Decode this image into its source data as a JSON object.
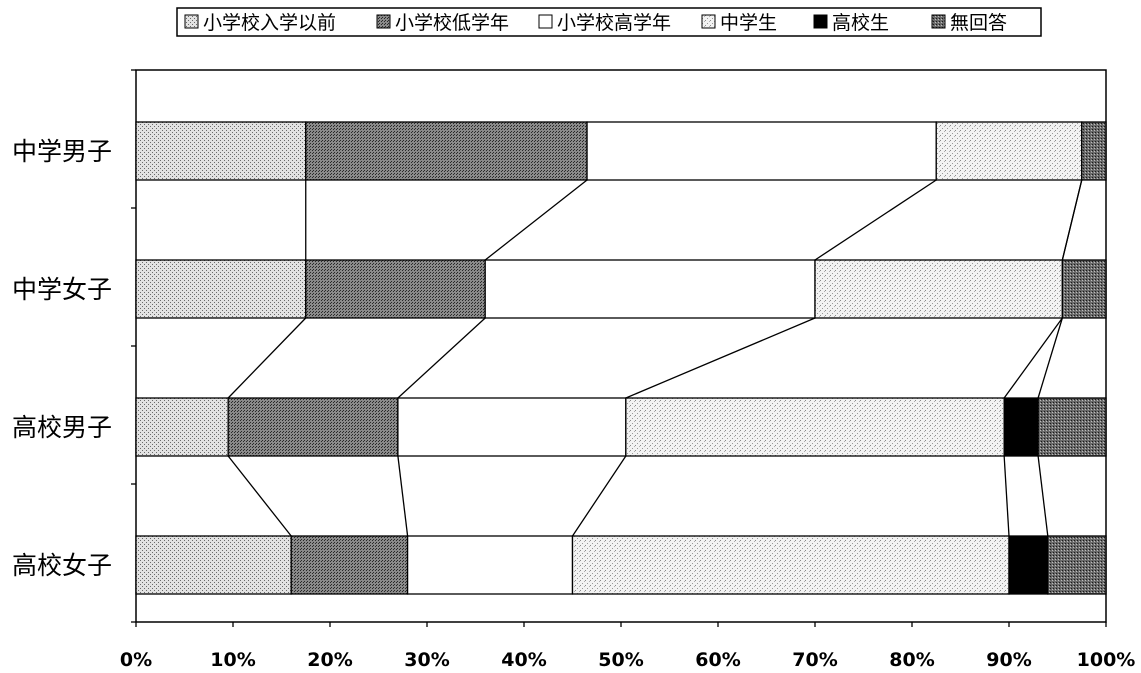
{
  "chart_data": {
    "type": "bar",
    "stacked": "percent",
    "orientation": "horizontal",
    "connector_lines": true,
    "legend_position": "top",
    "grid": false,
    "categories": [
      "中学男子",
      "中学女子",
      "高校男子",
      "高校女子"
    ],
    "series": [
      {
        "name": "小学校入学以前",
        "values": [
          17.5,
          17.5,
          9.5,
          16
        ]
      },
      {
        "name": "小学校低学年",
        "values": [
          29,
          18.5,
          17.5,
          12
        ]
      },
      {
        "name": "小学校高学年",
        "values": [
          36,
          34,
          23.5,
          17
        ]
      },
      {
        "name": "中学生",
        "values": [
          15,
          25.5,
          39,
          45
        ]
      },
      {
        "name": "高校生",
        "values": [
          0,
          0,
          3.5,
          4
        ]
      },
      {
        "name": "無回答",
        "values": [
          2.5,
          4.5,
          7,
          6
        ]
      }
    ],
    "xlim": [
      0,
      100
    ],
    "xticks": [
      "0%",
      "10%",
      "20%",
      "30%",
      "40%",
      "50%",
      "60%",
      "70%",
      "80%",
      "90%",
      "100%"
    ],
    "colors": [
      "#c4c4c4",
      "#7a7a7a",
      "#ffffff",
      "#eaeaea",
      "#000000",
      "#8a8a8a"
    ]
  }
}
